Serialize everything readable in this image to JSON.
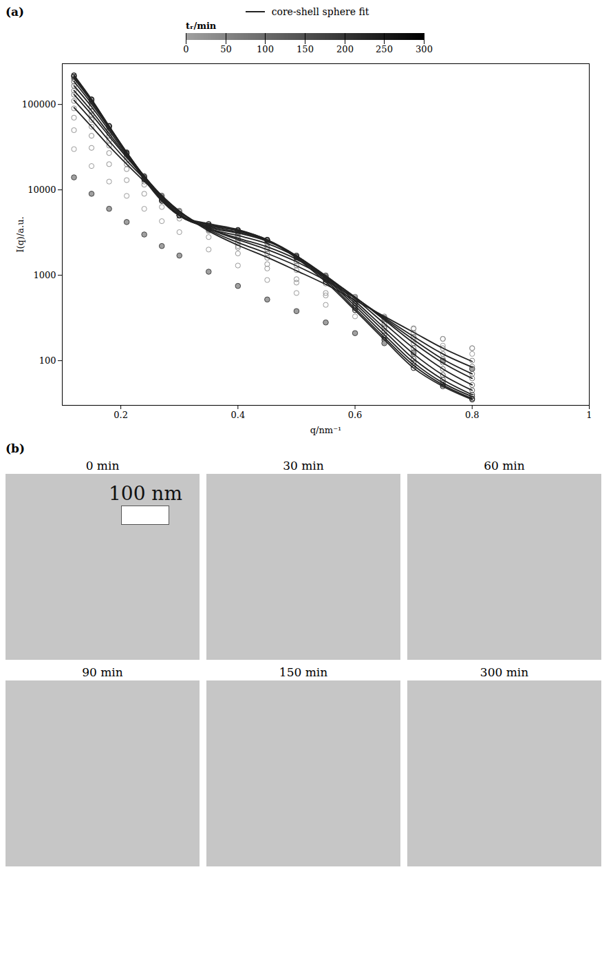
{
  "chart_data": {
    "type": "scatter",
    "panel_label": "(a)",
    "xlabel": "q/nm⁻¹",
    "ylabel": "I(q)/a.u.",
    "log": "y",
    "grid": false,
    "xlim": [
      0.1,
      1
    ],
    "xticks": [
      0.2,
      0.4,
      0.6,
      0.8,
      1
    ],
    "ylim": [
      30,
      300000
    ],
    "yticks": [
      100,
      1000,
      10000,
      100000
    ],
    "x": [
      0.12,
      0.15,
      0.18,
      0.21,
      0.24,
      0.27,
      0.3,
      0.35,
      0.4,
      0.45,
      0.5,
      0.55,
      0.6,
      0.65,
      0.7,
      0.75,
      0.8
    ],
    "color_bar": {
      "label": "tᵣ/min",
      "lim": [
        0,
        300
      ],
      "ticks": [
        0,
        50,
        100,
        150,
        200,
        250,
        300
      ],
      "range_colors": [
        "#a0a0a0",
        "#000000"
      ]
    },
    "fit": {
      "name": "core-shell sphere fit",
      "color": "#222222",
      "line_style": "solid",
      "type": "line"
    },
    "series": [
      {
        "t_r": 0,
        "marker": "filled",
        "values": [
          14000,
          9000,
          6000,
          4200,
          3000,
          2200,
          1700,
          1100,
          750,
          520,
          380,
          280,
          210,
          160,
          125,
          100,
          80
        ]
      },
      {
        "t_r": 10,
        "marker": "open",
        "values": [
          30000,
          19000,
          12500,
          8500,
          6000,
          4300,
          3200,
          2000,
          1300,
          880,
          620,
          450,
          330,
          250,
          190,
          150,
          120
        ]
      },
      {
        "t_r": 20,
        "marker": "open",
        "values": [
          50000,
          31000,
          20000,
          13000,
          9000,
          6300,
          4600,
          2800,
          1800,
          1200,
          820,
          580,
          420,
          310,
          235,
          180,
          140
        ]
      },
      {
        "t_r": 30,
        "marker": "open",
        "values": [
          70000,
          43000,
          27000,
          17500,
          11500,
          8000,
          5700,
          3400,
          2100,
          1350,
          900,
          620,
          440,
          320,
          240,
          180,
          140
        ]
      },
      {
        "t_r": 40,
        "marker": "open",
        "values": [
          90000,
          55000,
          33000,
          20000,
          12500,
          8200,
          5600,
          3300,
          2200,
          1600,
          1150,
          800,
          520,
          330,
          210,
          140,
          100
        ],
        "fit": [
          92000,
          55000,
          32500,
          20000,
          12600,
          8200,
          5550,
          3300,
          2250,
          1620,
          1130,
          780,
          510,
          330,
          215,
          140,
          98
        ]
      },
      {
        "t_r": 50,
        "marker": "open",
        "values": [
          110000,
          66000,
          38000,
          22000,
          13500,
          8500,
          5700,
          3400,
          2400,
          1800,
          1300,
          880,
          540,
          320,
          190,
          120,
          85
        ],
        "fit": [
          112000,
          66000,
          37500,
          22000,
          13500,
          8500,
          5650,
          3420,
          2420,
          1800,
          1290,
          870,
          540,
          320,
          192,
          120,
          84
        ]
      },
      {
        "t_r": 60,
        "marker": "open",
        "values": [
          130000,
          76000,
          43000,
          24000,
          14000,
          8600,
          5600,
          3500,
          2600,
          2000,
          1450,
          950,
          560,
          310,
          175,
          105,
          70
        ],
        "fit": [
          131000,
          76000,
          42500,
          24000,
          14000,
          8600,
          5600,
          3520,
          2620,
          2000,
          1440,
          940,
          555,
          310,
          176,
          104,
          70
        ]
      },
      {
        "t_r": 70,
        "marker": "open",
        "values": [
          145000,
          84000,
          46000,
          25000,
          14300,
          8500,
          5500,
          3500,
          2700,
          2150,
          1550,
          980,
          560,
          300,
          160,
          95,
          62
        ],
        "fit": [
          146000,
          84000,
          45500,
          25000,
          14300,
          8500,
          5500,
          3520,
          2720,
          2150,
          1540,
          970,
          555,
          300,
          161,
          94,
          62
        ]
      },
      {
        "t_r": 90,
        "marker": "open",
        "values": [
          165000,
          94000,
          50000,
          26000,
          14500,
          8400,
          5300,
          3500,
          2900,
          2350,
          1650,
          1000,
          540,
          270,
          140,
          80,
          52
        ],
        "fit": [
          166000,
          94000,
          49500,
          26000,
          14500,
          8400,
          5300,
          3520,
          2920,
          2350,
          1640,
          990,
          535,
          272,
          140,
          80,
          52
        ]
      },
      {
        "t_r": 120,
        "marker": "open",
        "values": [
          185000,
          102000,
          53000,
          27000,
          14500,
          8200,
          5100,
          3600,
          3100,
          2500,
          1700,
          980,
          500,
          240,
          120,
          68,
          45
        ],
        "fit": [
          186000,
          102000,
          52500,
          27000,
          14500,
          8200,
          5100,
          3620,
          3120,
          2500,
          1690,
          975,
          498,
          242,
          120,
          68,
          45
        ]
      },
      {
        "t_r": 150,
        "marker": "open",
        "values": [
          200000,
          108000,
          55000,
          27500,
          14300,
          8000,
          5000,
          3700,
          3200,
          2550,
          1700,
          950,
          470,
          220,
          105,
          60,
          40
        ],
        "fit": [
          201000,
          108000,
          54500,
          27500,
          14300,
          8000,
          5000,
          3720,
          3220,
          2550,
          1690,
          945,
          468,
          221,
          105,
          60,
          40
        ]
      },
      {
        "t_r": 180,
        "marker": "open",
        "values": [
          210000,
          112000,
          56000,
          27500,
          14000,
          7800,
          5000,
          3800,
          3300,
          2600,
          1700,
          920,
          440,
          200,
          95,
          55,
          38
        ],
        "fit": [
          211000,
          112000,
          55500,
          27500,
          14000,
          7800,
          5000,
          3820,
          3320,
          2600,
          1690,
          915,
          438,
          201,
          95,
          55,
          38
        ]
      },
      {
        "t_r": 210,
        "marker": "open",
        "values": [
          215000,
          114000,
          56000,
          27000,
          13600,
          7600,
          5000,
          3900,
          3350,
          2600,
          1650,
          880,
          410,
          185,
          88,
          52,
          36
        ],
        "fit": [
          216000,
          114000,
          55500,
          27000,
          13600,
          7600,
          5000,
          3920,
          3370,
          2600,
          1640,
          875,
          408,
          186,
          88,
          52,
          36
        ]
      },
      {
        "t_r": 270,
        "marker": "open",
        "values": [
          220000,
          115000,
          56000,
          26500,
          13200,
          7400,
          5000,
          4000,
          3400,
          2600,
          1600,
          840,
          390,
          175,
          82,
          50,
          35
        ],
        "fit": [
          221000,
          115000,
          55500,
          26500,
          13200,
          7400,
          5000,
          4020,
          3420,
          2600,
          1590,
          835,
          388,
          176,
          82,
          50,
          35
        ]
      }
    ]
  },
  "micrographs": {
    "panel_label": "(b)",
    "captions": [
      "0 min",
      "30 min",
      "60 min",
      "90 min",
      "150 min",
      "300 min"
    ],
    "scale_bar": {
      "label": "100 nm",
      "panel": 0
    }
  }
}
